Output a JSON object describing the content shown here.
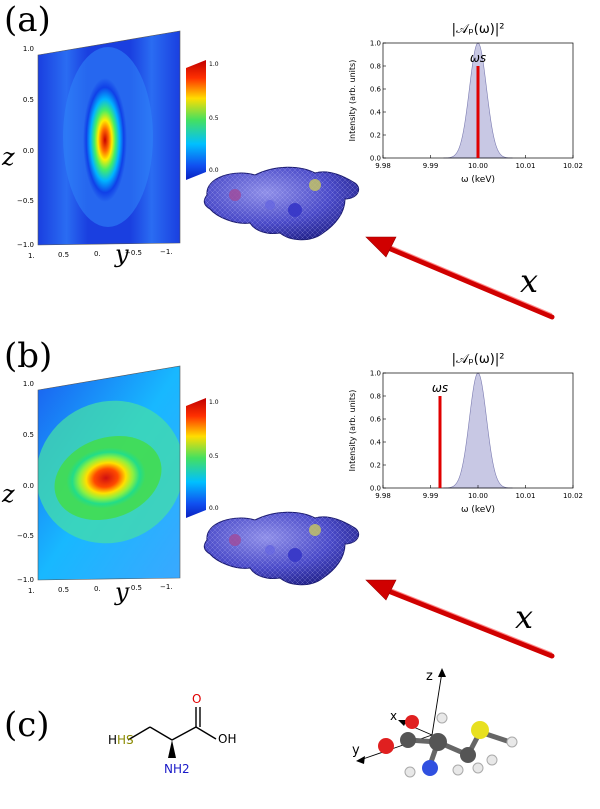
{
  "panels": {
    "a": {
      "label": "(a)",
      "map": {
        "z_label": "z",
        "y_label": "y",
        "z_ticks": [
          "1.0",
          "0.5",
          "0.0",
          "−0.5",
          "−1.0"
        ],
        "y_ticks": [
          "1.",
          "0.5",
          "0.",
          "−0.5",
          "−1."
        ]
      },
      "colorbar_ticks": [
        "1.0",
        "0.5",
        "0.0"
      ],
      "beam_label": "x"
    },
    "b": {
      "label": "(b)",
      "map": {
        "z_label": "z",
        "y_label": "y",
        "z_ticks": [
          "1.0",
          "0.5",
          "0.0",
          "−0.5",
          "−1.0"
        ],
        "y_ticks": [
          "1.",
          "0.5",
          "0.",
          "−0.5",
          "−1."
        ]
      },
      "colorbar_ticks": [
        "1.0",
        "0.5",
        "0.0"
      ],
      "beam_label": "x"
    },
    "c": {
      "label": "(c)",
      "molecule": {
        "sh": "HS",
        "o_top": "O",
        "oh": "OH",
        "nh2": "NH2"
      },
      "axes": {
        "z": "z",
        "x": "x",
        "y": "y"
      }
    }
  },
  "chart_data": [
    {
      "type": "area",
      "title": "|𝒜ₚ(ω)|²",
      "xlabel": "ω  (keV)",
      "ylabel": "Intensity  (arb. units)",
      "xlim": [
        9.98,
        10.02
      ],
      "ylim": [
        0,
        1.0
      ],
      "xticks": [
        "9.98",
        "9.99",
        "10.00",
        "10.01",
        "10.02"
      ],
      "yticks": [
        "0.0",
        "0.2",
        "0.4",
        "0.6",
        "0.8",
        "1.0"
      ],
      "pulse": {
        "center": 10.0,
        "sigma": 0.0018,
        "peak": 1.0
      },
      "marker": {
        "label": "ωs",
        "x": 10.0,
        "height": 0.8
      },
      "fill_color": "#c8c8e4",
      "marker_color": "#e00000"
    },
    {
      "type": "area",
      "title": "|𝒜ₚ(ω)|²",
      "xlabel": "ω  (keV)",
      "ylabel": "Intensity  (arb. units)",
      "xlim": [
        9.98,
        10.02
      ],
      "ylim": [
        0,
        1.0
      ],
      "xticks": [
        "9.98",
        "9.99",
        "10.00",
        "10.01",
        "10.02"
      ],
      "yticks": [
        "0.0",
        "0.2",
        "0.4",
        "0.6",
        "0.8",
        "1.0"
      ],
      "pulse": {
        "center": 10.0,
        "sigma": 0.0018,
        "peak": 1.0
      },
      "marker": {
        "label": "ωs",
        "x": 9.992,
        "height": 0.8
      },
      "fill_color": "#c8c8e4",
      "marker_color": "#e00000"
    }
  ]
}
